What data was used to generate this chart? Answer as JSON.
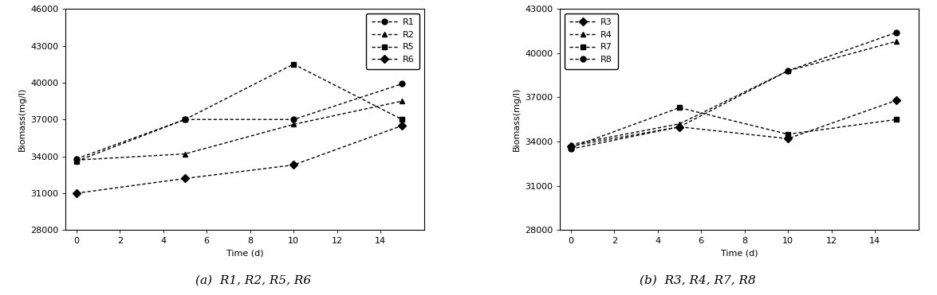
{
  "panel_a": {
    "xlabel": "Time (d)",
    "ylabel": "Biomass(mg/l)",
    "ylim": [
      28000,
      46000
    ],
    "xlim": [
      -0.5,
      16
    ],
    "xticks": [
      0,
      2,
      4,
      6,
      8,
      10,
      12,
      14
    ],
    "yticks": [
      28000,
      31000,
      34000,
      37000,
      40000,
      43000,
      46000
    ],
    "series": [
      {
        "label": "R1",
        "x": [
          0,
          5,
          10,
          15
        ],
        "y": [
          33800,
          37000,
          37000,
          39900
        ],
        "marker": "o",
        "color": "black"
      },
      {
        "label": "R2",
        "x": [
          0,
          5,
          10,
          15
        ],
        "y": [
          33700,
          34200,
          36600,
          38500
        ],
        "marker": "^",
        "color": "black"
      },
      {
        "label": "R5",
        "x": [
          0,
          5,
          10,
          15
        ],
        "y": [
          33600,
          37000,
          41500,
          37000
        ],
        "marker": "s",
        "color": "black"
      },
      {
        "label": "R6",
        "x": [
          0,
          5,
          10,
          15
        ],
        "y": [
          31000,
          32200,
          33300,
          36500
        ],
        "marker": "D",
        "color": "black"
      }
    ]
  },
  "panel_b": {
    "xlabel": "Time (d)",
    "ylabel": "Biomass(mg/l)",
    "ylim": [
      28000,
      43000
    ],
    "xlim": [
      -0.5,
      16
    ],
    "xticks": [
      0,
      2,
      4,
      6,
      8,
      10,
      12,
      14
    ],
    "yticks": [
      28000,
      31000,
      34000,
      37000,
      40000,
      43000
    ],
    "series": [
      {
        "label": "R3",
        "x": [
          0,
          5,
          10,
          15
        ],
        "y": [
          33700,
          35000,
          34200,
          36800
        ],
        "marker": "D",
        "color": "black"
      },
      {
        "label": "R4",
        "x": [
          0,
          5,
          10,
          15
        ],
        "y": [
          33800,
          35200,
          38800,
          40800
        ],
        "marker": "^",
        "color": "black"
      },
      {
        "label": "R7",
        "x": [
          0,
          5,
          10,
          15
        ],
        "y": [
          33600,
          36300,
          34500,
          35500
        ],
        "marker": "s",
        "color": "black"
      },
      {
        "label": "R8",
        "x": [
          0,
          5,
          10,
          15
        ],
        "y": [
          33500,
          35000,
          38800,
          41400
        ],
        "marker": "o",
        "color": "black"
      }
    ]
  },
  "caption_a": "(a)  R1, R2, R5, R6",
  "caption_b": "(b)  R3, R4, R7, R8",
  "label_fontsize": 8,
  "tick_fontsize": 8,
  "legend_fontsize": 8,
  "caption_fontsize": 11,
  "marker_size": 5,
  "line_width": 1.0,
  "background_color": "#ffffff"
}
